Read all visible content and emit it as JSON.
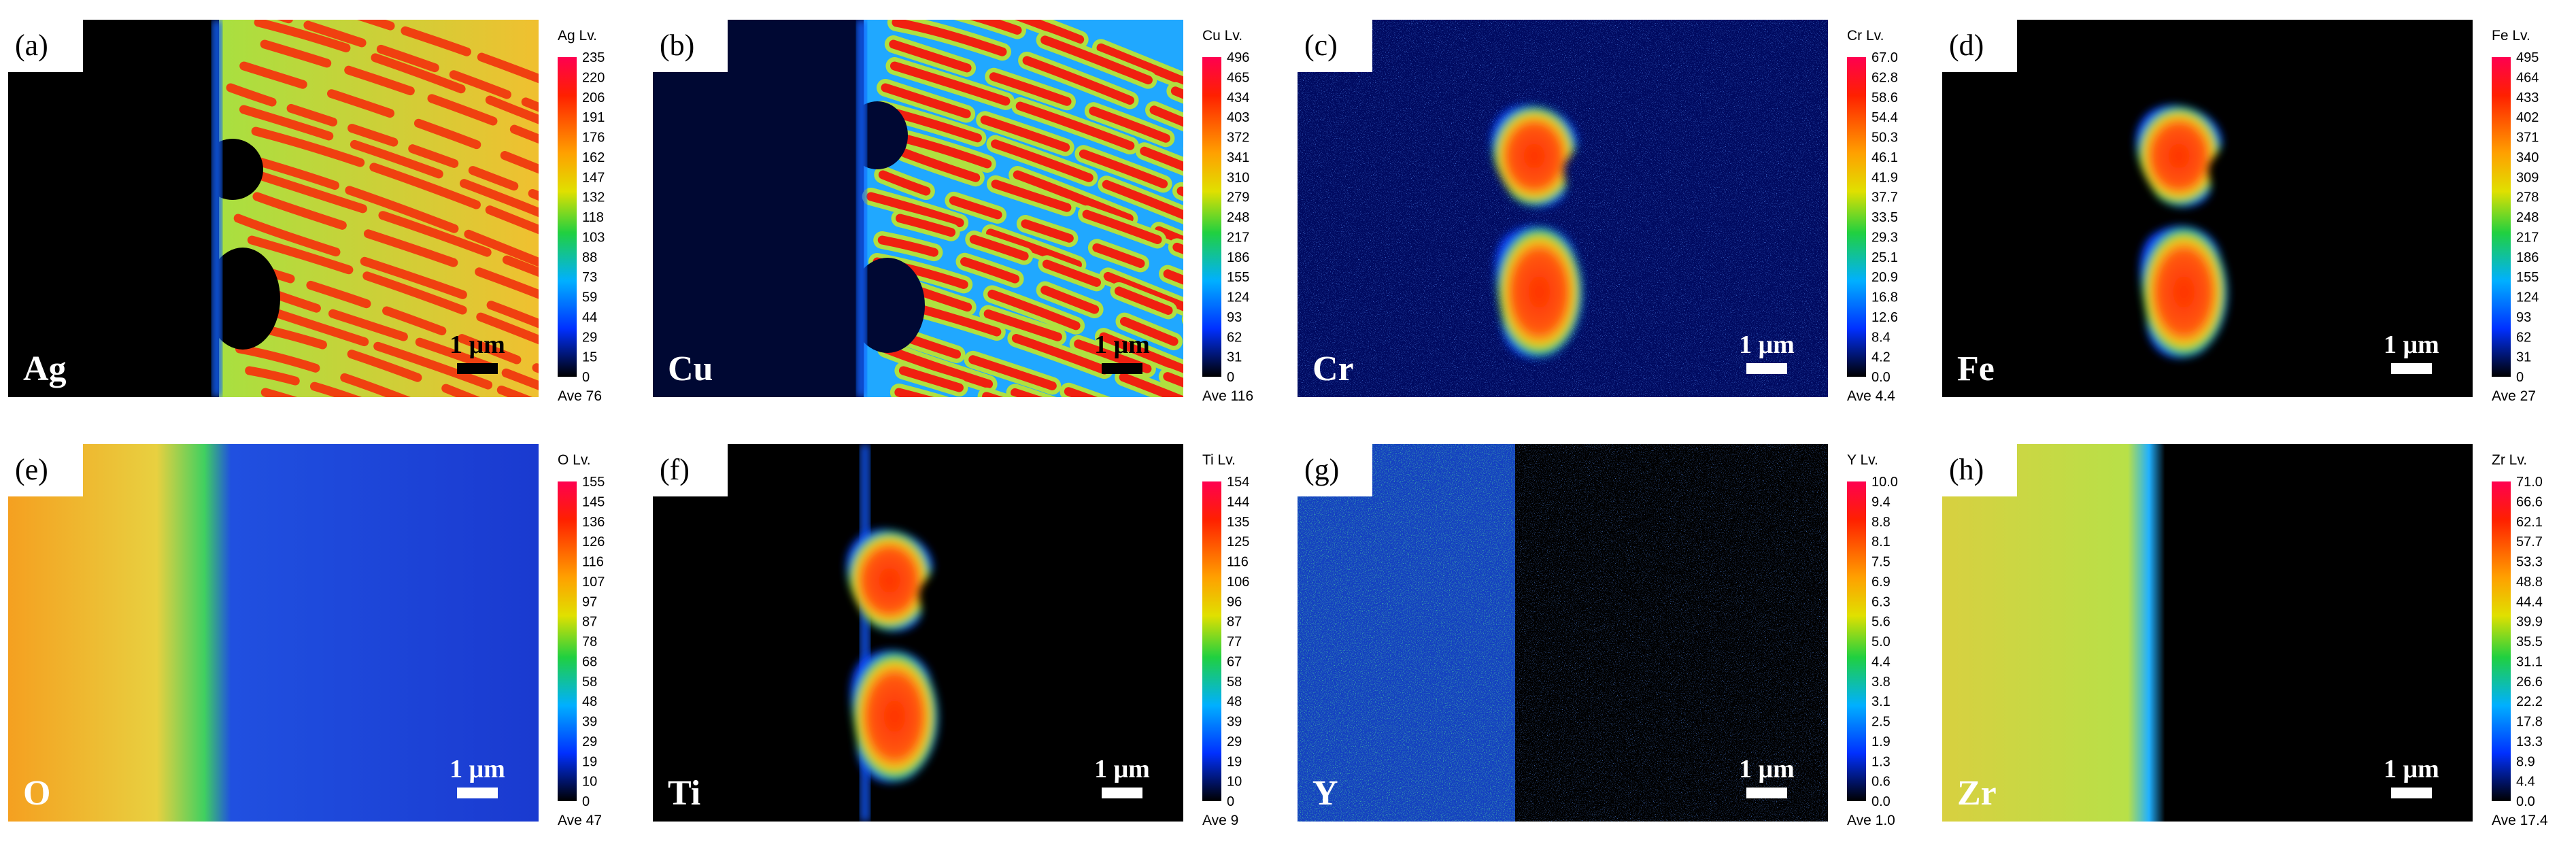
{
  "panels": [
    {
      "label": "(a)",
      "element": "Ag",
      "lv_title": "Ag Lv.",
      "ticks": [
        "235",
        "220",
        "206",
        "191",
        "176",
        "162",
        "147",
        "132",
        "118",
        "103",
        "88",
        "73",
        "59",
        "44",
        "29",
        "15",
        "0"
      ],
      "average": "Ave 76",
      "scale_bar": "1 μm"
    },
    {
      "label": "(b)",
      "element": "Cu",
      "lv_title": "Cu Lv.",
      "ticks": [
        "496",
        "465",
        "434",
        "403",
        "372",
        "341",
        "310",
        "279",
        "248",
        "217",
        "186",
        "155",
        "124",
        "93",
        "62",
        "31",
        "0"
      ],
      "average": "Ave 116",
      "scale_bar": "1 μm"
    },
    {
      "label": "(c)",
      "element": "Cr",
      "lv_title": "Cr Lv.",
      "ticks": [
        "67.0",
        "62.8",
        "58.6",
        "54.4",
        "50.3",
        "46.1",
        "41.9",
        "37.7",
        "33.5",
        "29.3",
        "25.1",
        "20.9",
        "16.8",
        "12.6",
        "8.4",
        "4.2",
        "0.0"
      ],
      "average": "Ave 4.4",
      "scale_bar": "1 μm"
    },
    {
      "label": "(d)",
      "element": "Fe",
      "lv_title": "Fe Lv.",
      "ticks": [
        "495",
        "464",
        "433",
        "402",
        "371",
        "340",
        "309",
        "278",
        "248",
        "217",
        "186",
        "155",
        "124",
        "93",
        "62",
        "31",
        "0"
      ],
      "average": "Ave 27",
      "scale_bar": "1 μm"
    },
    {
      "label": "(e)",
      "element": "O",
      "lv_title": "O Lv.",
      "ticks": [
        "155",
        "145",
        "136",
        "126",
        "116",
        "107",
        "97",
        "87",
        "78",
        "68",
        "58",
        "48",
        "39",
        "29",
        "19",
        "10",
        "0"
      ],
      "average": "Ave 47",
      "scale_bar": "1 μm"
    },
    {
      "label": "(f)",
      "element": "Ti",
      "lv_title": "Ti Lv.",
      "ticks": [
        "154",
        "144",
        "135",
        "125",
        "116",
        "106",
        "96",
        "87",
        "77",
        "67",
        "58",
        "48",
        "39",
        "29",
        "19",
        "10",
        "0"
      ],
      "average": "Ave 9",
      "scale_bar": "1 μm"
    },
    {
      "label": "(g)",
      "element": "Y",
      "lv_title": "Y Lv.",
      "ticks": [
        "10.0",
        "9.4",
        "8.8",
        "8.1",
        "7.5",
        "6.9",
        "6.3",
        "5.6",
        "5.0",
        "4.4",
        "3.8",
        "3.1",
        "2.5",
        "1.9",
        "1.3",
        "0.6",
        "0.0"
      ],
      "average": "Ave 1.0",
      "scale_bar": "1 μm"
    },
    {
      "label": "(h)",
      "element": "Zr",
      "lv_title": "Zr Lv.",
      "ticks": [
        "71.0",
        "66.6",
        "62.1",
        "57.7",
        "53.3",
        "48.8",
        "44.4",
        "39.9",
        "35.5",
        "31.1",
        "26.6",
        "22.2",
        "17.8",
        "13.3",
        "8.9",
        "4.4",
        "0.0"
      ],
      "average": "Ave 17.4",
      "scale_bar": "1 μm"
    }
  ]
}
